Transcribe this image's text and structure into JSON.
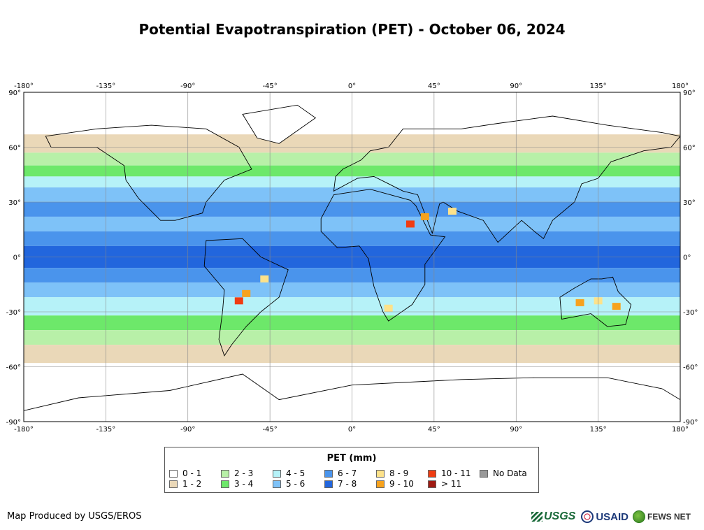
{
  "title": "Potential Evapotranspiration (PET) - October 06, 2024",
  "map": {
    "lon_ticks": [
      "-180°",
      "-135°",
      "-90°",
      "-45°",
      "0°",
      "45°",
      "90°",
      "135°",
      "180°"
    ],
    "lat_ticks": [
      "90°",
      "60°",
      "30°",
      "0°",
      "-30°",
      "-60°",
      "-90°"
    ],
    "colors": {
      "ocean_none": "#ffffff",
      "c0_1": "#ffffff",
      "c1_2": "#ead8b8",
      "c2_3": "#b8f0a8",
      "c3_4": "#6de86a",
      "c4_5": "#b6f2f8",
      "c5_6": "#7ec2f8",
      "c6_7": "#4a94ec",
      "c7_8": "#2266dd",
      "c8_9": "#fde28a",
      "c9_10": "#f7a21d",
      "c10_11": "#f03c12",
      "c11p": "#a01a12",
      "nodata": "#999999"
    }
  },
  "legend": {
    "title": "PET (mm)",
    "items": [
      {
        "label": "0 - 1",
        "color": "#ffffff"
      },
      {
        "label": "1 - 2",
        "color": "#ead8b8"
      },
      {
        "label": "2 - 3",
        "color": "#b8f0a8"
      },
      {
        "label": "3 - 4",
        "color": "#6de86a"
      },
      {
        "label": "4 - 5",
        "color": "#b6f2f8"
      },
      {
        "label": "5 - 6",
        "color": "#7ec2f8"
      },
      {
        "label": "6 - 7",
        "color": "#4a94ec"
      },
      {
        "label": "7 - 8",
        "color": "#2266dd"
      },
      {
        "label": "8 - 9",
        "color": "#fde28a"
      },
      {
        "label": "9 - 10",
        "color": "#f7a21d"
      },
      {
        "label": "10 - 11",
        "color": "#f03c12"
      },
      {
        "label": "> 11",
        "color": "#a01a12"
      },
      {
        "label": "No Data",
        "color": "#999999"
      }
    ]
  },
  "credit": "Map Produced by USGS/EROS",
  "logos": {
    "usgs": "USGS",
    "usaid": "USAID",
    "fews": "FEWS NET"
  }
}
